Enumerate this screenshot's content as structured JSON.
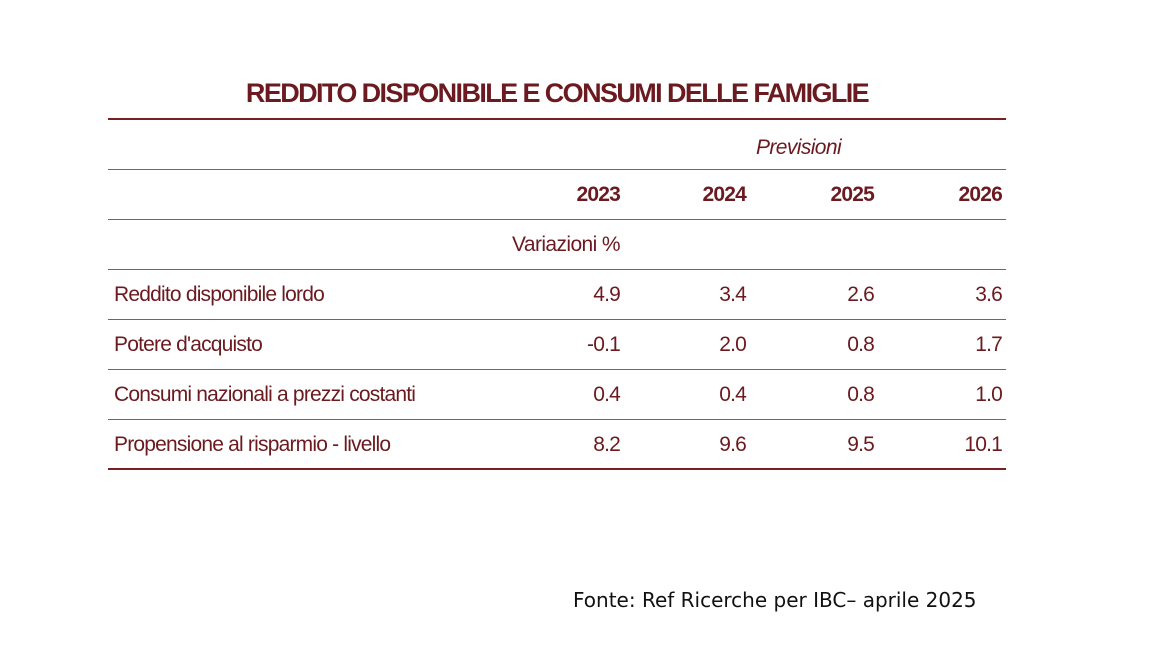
{
  "chart_data": {
    "type": "table",
    "title": "REDDITO DISPONIBILE E CONSUMI DELLE FAMIGLIE",
    "forecast_label": "Previsioni",
    "unit_label": "Variazioni %",
    "columns": [
      "2023",
      "2024",
      "2025",
      "2026"
    ],
    "rows": [
      {
        "label": "Reddito disponibile lordo",
        "values": [
          "4.9",
          "3.4",
          "2.6",
          "3.6"
        ]
      },
      {
        "label": "Potere d'acquisto",
        "values": [
          "-0.1",
          "2.0",
          "0.8",
          "1.7"
        ]
      },
      {
        "label": "Consumi nazionali a prezzi costanti",
        "values": [
          "0.4",
          "0.4",
          "0.8",
          "1.0"
        ]
      },
      {
        "label": "Propensione al risparmio - livello",
        "values": [
          "8.2",
          "9.6",
          "9.5",
          "10.1"
        ]
      }
    ]
  },
  "source": "Fonte: Ref Ricerche per IBC– aprile 2025"
}
